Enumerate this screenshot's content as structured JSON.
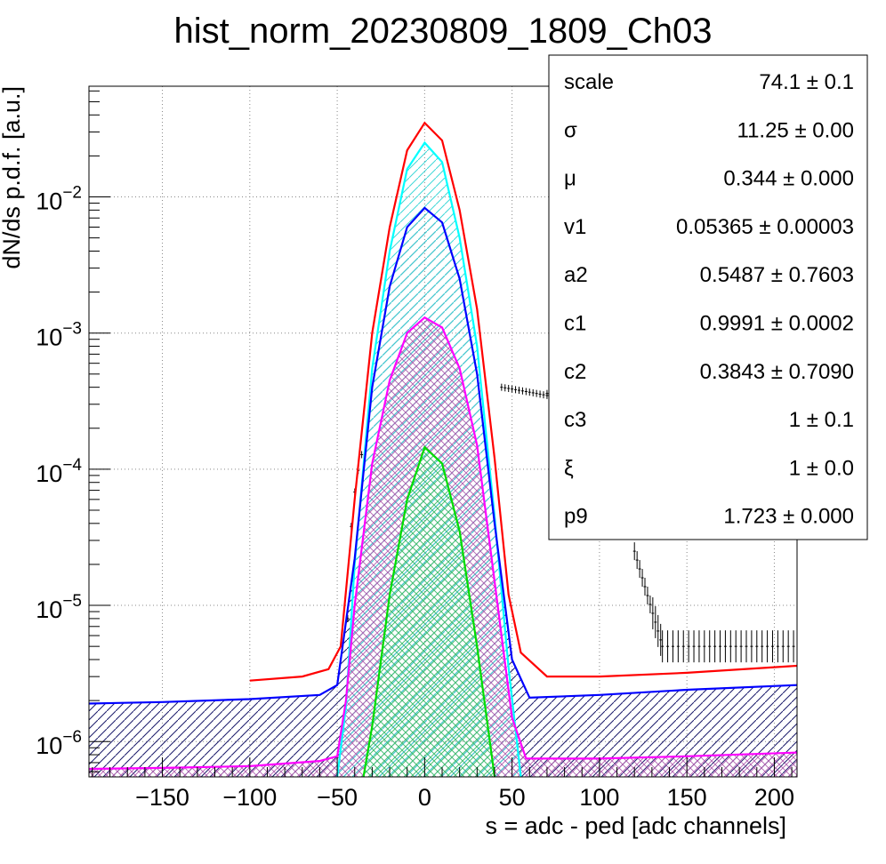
{
  "chart_data": {
    "type": "line",
    "title": "hist_norm_20230809_1809_Ch03",
    "xlabel": "s = adc - ped [adc channels]",
    "ylabel": "dN/ds p.d.f. [a.u.]",
    "xlim": [
      -192,
      213
    ],
    "ylim": [
      5.5e-07,
      0.065
    ],
    "yscale": "log",
    "grid": true,
    "x_ticks": [
      -150,
      -100,
      -50,
      0,
      50,
      100,
      150,
      200
    ],
    "x_tick_labels": [
      "−150",
      "−100",
      "−50",
      "0",
      "50",
      "100",
      "150",
      "200"
    ],
    "y_ticks": [
      1e-06,
      1e-05,
      0.0001,
      0.001,
      0.01
    ],
    "y_tick_labels": [
      {
        "base": "10",
        "exp": "−6"
      },
      {
        "base": "10",
        "exp": "−5"
      },
      {
        "base": "10",
        "exp": "−4"
      },
      {
        "base": "10",
        "exp": "−3"
      },
      {
        "base": "10",
        "exp": "−2"
      }
    ],
    "series": [
      {
        "color": "#ff0000",
        "kind": "total-fit",
        "points": [
          [
            -100,
            2.8e-06
          ],
          [
            -70,
            3e-06
          ],
          [
            -55,
            3.4e-06
          ],
          [
            -48,
            5e-06
          ],
          [
            -40,
            6e-05
          ],
          [
            -30,
            0.001
          ],
          [
            -20,
            0.006
          ],
          [
            -10,
            0.022
          ],
          [
            0,
            0.035
          ],
          [
            10,
            0.026
          ],
          [
            20,
            0.008
          ],
          [
            30,
            0.0015
          ],
          [
            40,
            0.00012
          ],
          [
            48,
            1.2e-05
          ],
          [
            55,
            4.5e-06
          ],
          [
            70,
            3e-06
          ],
          [
            100,
            3e-06
          ],
          [
            150,
            3.2e-06
          ],
          [
            213,
            3.6e-06
          ]
        ]
      },
      {
        "color": "#00ffff",
        "kind": "component",
        "points": [
          [
            -50,
            5.5e-07
          ],
          [
            -45,
            1.8e-06
          ],
          [
            -40,
            2e-05
          ],
          [
            -30,
            0.00055
          ],
          [
            -20,
            0.004
          ],
          [
            -10,
            0.016
          ],
          [
            0,
            0.025
          ],
          [
            10,
            0.018
          ],
          [
            20,
            0.005
          ],
          [
            30,
            0.0008
          ],
          [
            40,
            4.5e-05
          ],
          [
            48,
            3.5e-06
          ],
          [
            55,
            5.5e-07
          ]
        ]
      },
      {
        "color": "#0000ff",
        "kind": "component",
        "points": [
          [
            -192,
            1.9e-06
          ],
          [
            -150,
            1.95e-06
          ],
          [
            -100,
            2.05e-06
          ],
          [
            -60,
            2.2e-06
          ],
          [
            -50,
            2.6e-06
          ],
          [
            -40,
            2.2e-05
          ],
          [
            -30,
            0.0004
          ],
          [
            -20,
            0.0022
          ],
          [
            -10,
            0.006
          ],
          [
            0,
            0.0083
          ],
          [
            10,
            0.0065
          ],
          [
            20,
            0.0025
          ],
          [
            30,
            0.0005
          ],
          [
            40,
            4e-05
          ],
          [
            50,
            4e-06
          ],
          [
            60,
            2.1e-06
          ],
          [
            100,
            2.2e-06
          ],
          [
            150,
            2.4e-06
          ],
          [
            213,
            2.6e-06
          ]
        ]
      },
      {
        "color": "#ff00ff",
        "kind": "component",
        "points": [
          [
            -192,
            6.3e-07
          ],
          [
            -150,
            6.4e-07
          ],
          [
            -100,
            6.6e-07
          ],
          [
            -60,
            7.2e-07
          ],
          [
            -50,
            7.8e-07
          ],
          [
            -45,
            2e-06
          ],
          [
            -40,
            1e-05
          ],
          [
            -30,
            0.00011
          ],
          [
            -20,
            0.00045
          ],
          [
            -10,
            0.001
          ],
          [
            0,
            0.0013
          ],
          [
            10,
            0.0011
          ],
          [
            20,
            0.00055
          ],
          [
            30,
            0.00015
          ],
          [
            40,
            1.5e-05
          ],
          [
            50,
            1.5e-06
          ],
          [
            58,
            7.5e-07
          ],
          [
            100,
            7.5e-07
          ],
          [
            150,
            7.8e-07
          ],
          [
            213,
            8.3e-07
          ]
        ]
      },
      {
        "color": "#00dd00",
        "kind": "component",
        "points": [
          [
            -35,
            5.5e-07
          ],
          [
            -30,
            1.3e-06
          ],
          [
            -20,
            1.2e-05
          ],
          [
            -10,
            6e-05
          ],
          [
            0,
            0.000145
          ],
          [
            10,
            0.00011
          ],
          [
            20,
            3.5e-05
          ],
          [
            30,
            5e-06
          ],
          [
            40,
            5.5e-07
          ]
        ]
      }
    ]
  },
  "stats": [
    {
      "name": "scale",
      "value": "74.1 ± 0.1"
    },
    {
      "name": "σ",
      "value": "11.25 ± 0.00"
    },
    {
      "name": "μ",
      "value": "0.344 ± 0.000"
    },
    {
      "name": "v1",
      "value": "0.05365 ± 0.00003"
    },
    {
      "name": "a2",
      "value": "0.5487 ± 0.7603"
    },
    {
      "name": "c1",
      "value": "0.9991 ± 0.0002"
    },
    {
      "name": "c2",
      "value": "0.3843 ± 0.7090"
    },
    {
      "name": "c3",
      "value": "1 ± 0.1"
    },
    {
      "name": "ξ",
      "value": "1 ± 0.0"
    },
    {
      "name": "p9",
      "value": "1.723 ± 0.000"
    }
  ]
}
